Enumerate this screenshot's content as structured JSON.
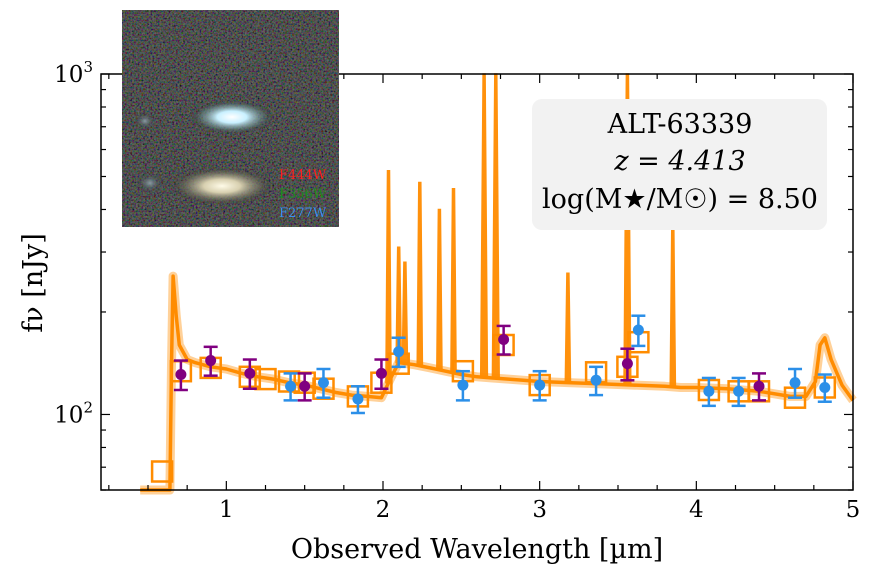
{
  "chart_data": {
    "type": "scatter",
    "title": "",
    "xlabel": "Observed Wavelength [µm]",
    "ylabel": "fν [nJy]",
    "xlim": [
      0.2,
      5.0
    ],
    "ylim": [
      60,
      1000
    ],
    "yscale": "log",
    "x_ticks": [
      1,
      2,
      3,
      4,
      5
    ],
    "y_ticks": [
      {
        "value": 100,
        "base": "10",
        "exp": "2"
      },
      {
        "value": 1000,
        "base": "10",
        "exp": "3"
      }
    ],
    "annotation": {
      "object_name": "ALT-63339",
      "redshift": "z = 4.413",
      "mass_label": "log(M★/M☉) = 8.50"
    },
    "inset_bands": [
      {
        "label": "F444W",
        "color": "#ff2020"
      },
      {
        "label": "F356W",
        "color": "#1e8c1e"
      },
      {
        "label": "F277W",
        "color": "#3d8df0"
      }
    ],
    "colors": {
      "model": "#ff8c00",
      "photometry_blue": "#2b8fe8",
      "photometry_purple": "#800080",
      "info_box": "#f2f2f2"
    },
    "series": [
      {
        "name": "Photometry (blue)",
        "points": [
          {
            "x": 1.41,
            "y": 121,
            "err": 11
          },
          {
            "x": 1.62,
            "y": 124,
            "err": 12
          },
          {
            "x": 1.84,
            "y": 111,
            "err": 10
          },
          {
            "x": 2.1,
            "y": 153,
            "err": 15
          },
          {
            "x": 2.51,
            "y": 122,
            "err": 12
          },
          {
            "x": 3.0,
            "y": 122,
            "err": 12
          },
          {
            "x": 3.36,
            "y": 126,
            "err": 12
          },
          {
            "x": 3.63,
            "y": 177,
            "err": 18
          },
          {
            "x": 4.08,
            "y": 117,
            "err": 11
          },
          {
            "x": 4.27,
            "y": 117,
            "err": 11
          },
          {
            "x": 4.63,
            "y": 124,
            "err": 12
          },
          {
            "x": 4.82,
            "y": 120,
            "err": 11
          }
        ]
      },
      {
        "name": "Photometry (purple)",
        "points": [
          {
            "x": 0.71,
            "y": 131,
            "err": 13
          },
          {
            "x": 0.9,
            "y": 144,
            "err": 14
          },
          {
            "x": 1.15,
            "y": 132,
            "err": 13
          },
          {
            "x": 1.5,
            "y": 121,
            "err": 11
          },
          {
            "x": 1.99,
            "y": 132,
            "err": 13
          },
          {
            "x": 2.77,
            "y": 166,
            "err": 16
          },
          {
            "x": 3.56,
            "y": 141,
            "err": 15
          },
          {
            "x": 4.4,
            "y": 121,
            "err": 11
          }
        ]
      },
      {
        "name": "Model photometry (squares)",
        "points": [
          {
            "x": 0.59,
            "y": 68
          },
          {
            "x": 0.71,
            "y": 134
          },
          {
            "x": 0.9,
            "y": 137
          },
          {
            "x": 1.15,
            "y": 129
          },
          {
            "x": 1.25,
            "y": 127
          },
          {
            "x": 1.4,
            "y": 125
          },
          {
            "x": 1.5,
            "y": 124
          },
          {
            "x": 1.62,
            "y": 119
          },
          {
            "x": 1.84,
            "y": 113
          },
          {
            "x": 1.99,
            "y": 124
          },
          {
            "x": 2.1,
            "y": 141
          },
          {
            "x": 2.51,
            "y": 134
          },
          {
            "x": 2.77,
            "y": 160
          },
          {
            "x": 3.0,
            "y": 122
          },
          {
            "x": 3.36,
            "y": 133
          },
          {
            "x": 3.56,
            "y": 138
          },
          {
            "x": 3.63,
            "y": 163
          },
          {
            "x": 4.08,
            "y": 118
          },
          {
            "x": 4.27,
            "y": 117
          },
          {
            "x": 4.4,
            "y": 117
          },
          {
            "x": 4.63,
            "y": 112
          },
          {
            "x": 4.82,
            "y": 120
          }
        ]
      },
      {
        "name": "Model spectrum",
        "continuum": [
          [
            0.45,
            45
          ],
          [
            0.6,
            50
          ],
          [
            0.64,
            58
          ],
          [
            0.65,
            140
          ],
          [
            0.66,
            255
          ],
          [
            0.68,
            195
          ],
          [
            0.7,
            160
          ],
          [
            0.75,
            145
          ],
          [
            0.8,
            142
          ],
          [
            0.9,
            138
          ],
          [
            1.0,
            136
          ],
          [
            1.1,
            132
          ],
          [
            1.2,
            129
          ],
          [
            1.3,
            127
          ],
          [
            1.4,
            124
          ],
          [
            1.5,
            122
          ],
          [
            1.6,
            119
          ],
          [
            1.7,
            116
          ],
          [
            1.8,
            114
          ],
          [
            1.9,
            113
          ],
          [
            1.99,
            112
          ],
          [
            2.05,
            128
          ],
          [
            2.1,
            142
          ],
          [
            2.2,
            140
          ],
          [
            2.3,
            137
          ],
          [
            2.4,
            134
          ],
          [
            2.5,
            131
          ],
          [
            2.6,
            129
          ],
          [
            2.7,
            128
          ],
          [
            2.8,
            127
          ],
          [
            3.0,
            125
          ],
          [
            3.2,
            124
          ],
          [
            3.4,
            123
          ],
          [
            3.6,
            122
          ],
          [
            3.8,
            121
          ],
          [
            3.9,
            120
          ],
          [
            4.0,
            120
          ],
          [
            4.2,
            119
          ],
          [
            4.4,
            117
          ],
          [
            4.6,
            113
          ],
          [
            4.7,
            113
          ],
          [
            4.76,
            125
          ],
          [
            4.79,
            160
          ],
          [
            4.82,
            168
          ],
          [
            4.86,
            145
          ],
          [
            4.93,
            122
          ],
          [
            5.0,
            110
          ]
        ],
        "lines": [
          {
            "x": 2.035,
            "peak": 520
          },
          {
            "x": 2.1,
            "peak": 310
          },
          {
            "x": 2.14,
            "peak": 280
          },
          {
            "x": 2.235,
            "peak": 480
          },
          {
            "x": 2.36,
            "peak": 400
          },
          {
            "x": 2.45,
            "peak": 460
          },
          {
            "x": 2.645,
            "peak": 1000
          },
          {
            "x": 2.72,
            "peak": 1000
          },
          {
            "x": 3.18,
            "peak": 260
          },
          {
            "x": 3.56,
            "peak": 1000
          },
          {
            "x": 3.85,
            "peak": 360
          }
        ]
      }
    ]
  }
}
